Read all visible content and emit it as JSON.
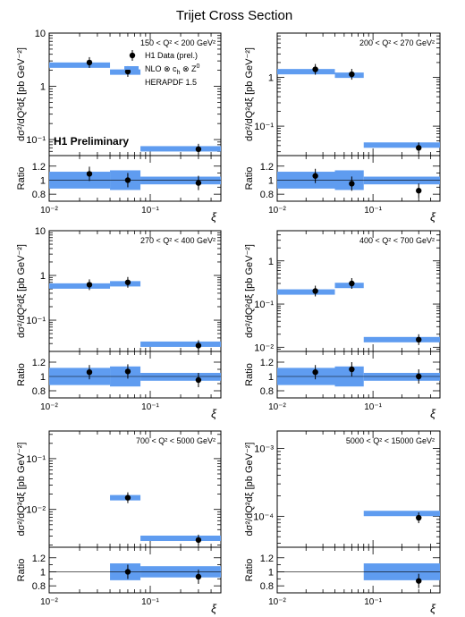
{
  "figure": {
    "title": "Trijet Cross Section",
    "ylabel_main": "dσ²/dQ²dξ [pb GeV⁻²]",
    "ylabel_ratio": "Ratio",
    "xlabel": "ξ",
    "legend": {
      "data": "H1 Data (prel.)",
      "nlo": "NLO ⊗ c",
      "nlo_sub": "h",
      "nlo_tail": " ⊗ Z",
      "nlo_sup": "0",
      "pdf": "HERAPDF 1.5"
    },
    "preliminary": "H1 Preliminary",
    "colors": {
      "band": "#5f9cf0",
      "data": "#000000"
    }
  },
  "chart_data": [
    {
      "type": "scatter",
      "q2_range": "150 < Q² < 200 GeV²",
      "xscale": "log",
      "yscale": "log",
      "xlim": [
        0.01,
        0.5
      ],
      "ylim": [
        0.05,
        10
      ],
      "ytick_labels": [
        "10⁻¹",
        "1",
        "10"
      ],
      "ratio_ylim": [
        0.7,
        1.35
      ],
      "bins": [
        [
          0.01,
          0.04
        ],
        [
          0.04,
          0.08
        ],
        [
          0.08,
          0.5
        ]
      ],
      "data_x": [
        0.025,
        0.06,
        0.3
      ],
      "data_y": [
        2.8,
        1.9,
        0.066
      ],
      "nlo_y": [
        2.5,
        1.85,
        0.067
      ],
      "ratio": [
        1.09,
        1.0,
        0.96
      ],
      "ratio_band": [
        [
          0.88,
          1.12
        ],
        [
          0.86,
          1.14
        ],
        [
          0.94,
          1.05
        ]
      ]
    },
    {
      "type": "scatter",
      "q2_range": "200 < Q² < 270 GeV²",
      "xscale": "log",
      "yscale": "log",
      "xlim": [
        0.01,
        0.5
      ],
      "ylim": [
        0.025,
        8
      ],
      "ytick_labels": [
        "10⁻¹",
        "1"
      ],
      "ratio_ylim": [
        0.7,
        1.35
      ],
      "bins": [
        [
          0.01,
          0.04
        ],
        [
          0.04,
          0.08
        ],
        [
          0.08,
          0.5
        ]
      ],
      "data_x": [
        0.025,
        0.06,
        0.3
      ],
      "data_y": [
        1.45,
        1.15,
        0.036
      ],
      "nlo_y": [
        1.3,
        1.1,
        0.041
      ],
      "ratio": [
        1.06,
        0.95,
        0.85
      ],
      "ratio_band": [
        [
          0.88,
          1.12
        ],
        [
          0.86,
          1.14
        ],
        [
          0.94,
          1.05
        ]
      ]
    },
    {
      "type": "scatter",
      "q2_range": "270 < Q² < 400 GeV²",
      "xscale": "log",
      "yscale": "log",
      "xlim": [
        0.01,
        0.5
      ],
      "ylim": [
        0.02,
        10
      ],
      "ytick_labels": [
        "10⁻¹",
        "1",
        "10"
      ],
      "ratio_ylim": [
        0.7,
        1.35
      ],
      "bins": [
        [
          0.01,
          0.04
        ],
        [
          0.04,
          0.08
        ],
        [
          0.08,
          0.5
        ]
      ],
      "data_x": [
        0.025,
        0.06,
        0.3
      ],
      "data_y": [
        0.62,
        0.7,
        0.027
      ],
      "nlo_y": [
        0.58,
        0.65,
        0.029
      ],
      "ratio": [
        1.06,
        1.07,
        0.95
      ],
      "ratio_band": [
        [
          0.88,
          1.12
        ],
        [
          0.86,
          1.14
        ],
        [
          0.94,
          1.05
        ]
      ]
    },
    {
      "type": "scatter",
      "q2_range": "400 < Q² < 700 GeV²",
      "xscale": "log",
      "yscale": "log",
      "xlim": [
        0.01,
        0.5
      ],
      "ylim": [
        0.008,
        5
      ],
      "ytick_labels": [
        "10⁻²",
        "10⁻¹",
        "1"
      ],
      "ratio_ylim": [
        0.7,
        1.35
      ],
      "bins": [
        [
          0.01,
          0.04
        ],
        [
          0.04,
          0.08
        ],
        [
          0.08,
          0.5
        ]
      ],
      "data_x": [
        0.025,
        0.06,
        0.3
      ],
      "data_y": [
        0.2,
        0.3,
        0.015
      ],
      "nlo_y": [
        0.19,
        0.27,
        0.015
      ],
      "ratio": [
        1.06,
        1.1,
        1.0
      ],
      "ratio_band": [
        [
          0.88,
          1.12
        ],
        [
          0.86,
          1.14
        ],
        [
          0.94,
          1.05
        ]
      ]
    },
    {
      "type": "scatter",
      "q2_range": "700 < Q² < 5000 GeV²",
      "xscale": "log",
      "yscale": "log",
      "xlim": [
        0.01,
        0.5
      ],
      "ylim": [
        0.0018,
        0.35
      ],
      "ytick_labels": [
        "10⁻²",
        "10⁻¹"
      ],
      "ratio_ylim": [
        0.7,
        1.35
      ],
      "bins": [
        [
          0.04,
          0.08
        ],
        [
          0.08,
          0.5
        ]
      ],
      "data_x": [
        0.06,
        0.3
      ],
      "data_y": [
        0.017,
        0.0025
      ],
      "nlo_y": [
        0.017,
        0.0027
      ],
      "ratio": [
        1.0,
        0.93
      ],
      "ratio_band": [
        [
          0.88,
          1.12
        ],
        [
          0.92,
          1.08
        ]
      ]
    },
    {
      "type": "scatter",
      "q2_range": "5000 < Q² < 15000 GeV²",
      "xscale": "log",
      "yscale": "log",
      "xlim": [
        0.01,
        0.5
      ],
      "ylim": [
        3.5e-05,
        0.0018
      ],
      "ytick_labels": [
        "10⁻⁴",
        "10⁻³"
      ],
      "ratio_ylim": [
        0.7,
        1.35
      ],
      "bins": [
        [
          0.08,
          0.5
        ]
      ],
      "data_x": [
        0.3
      ],
      "data_y": [
        9.5e-05
      ],
      "nlo_y": [
        0.00011
      ],
      "ratio": [
        0.87
      ],
      "ratio_band": [
        [
          0.88,
          1.12
        ]
      ]
    }
  ]
}
